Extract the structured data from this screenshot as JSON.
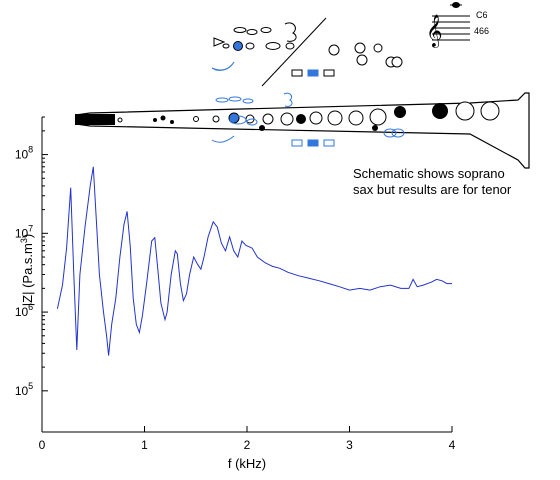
{
  "chart_data": {
    "type": "line",
    "xlabel": "f (kHz)",
    "ylabel": "|Z| (Pa.s.m",
    "ylabel_sup": "3",
    "ylabel_close": ")",
    "xlim": [
      0,
      4
    ],
    "ylim": [
      30000,
      300000000
    ],
    "yscale": "log",
    "xticks": [
      {
        "value": 0,
        "label": "0"
      },
      {
        "value": 1,
        "label": "1"
      },
      {
        "value": 2,
        "label": "2"
      },
      {
        "value": 3,
        "label": "3"
      },
      {
        "value": 4,
        "label": "4"
      }
    ],
    "yticks": [
      {
        "value": 100000,
        "base": "10",
        "exp": "5"
      },
      {
        "value": 1000000,
        "base": "10",
        "exp": "6"
      },
      {
        "value": 10000000,
        "base": "10",
        "exp": "7"
      },
      {
        "value": 100000000,
        "base": "10",
        "exp": "8"
      }
    ],
    "grid": false,
    "annotation": [
      "Schematic shows soprano",
      "sax but results are for tenor"
    ],
    "note_label": "C6",
    "note_freq": "466",
    "line_color": "#2233cc",
    "key_highlight_color": "#3377dd",
    "series": [
      {
        "points": [
          [
            0.15,
            1100000
          ],
          [
            0.2,
            2200000
          ],
          [
            0.24,
            6500000
          ],
          [
            0.28,
            38000000
          ],
          [
            0.31,
            3000000
          ],
          [
            0.34,
            330000
          ],
          [
            0.37,
            3000000
          ],
          [
            0.42,
            12000000
          ],
          [
            0.47,
            40000000
          ],
          [
            0.5,
            70000000
          ],
          [
            0.53,
            15000000
          ],
          [
            0.56,
            3000000
          ],
          [
            0.6,
            1000000
          ],
          [
            0.63,
            500000
          ],
          [
            0.65,
            280000
          ],
          [
            0.68,
            700000
          ],
          [
            0.72,
            1500000
          ],
          [
            0.76,
            5000000
          ],
          [
            0.8,
            13000000
          ],
          [
            0.83,
            19000000
          ],
          [
            0.86,
            7000000
          ],
          [
            0.89,
            1500000
          ],
          [
            0.92,
            700000
          ],
          [
            0.95,
            550000
          ],
          [
            0.98,
            900000
          ],
          [
            1.02,
            2300000
          ],
          [
            1.07,
            8000000
          ],
          [
            1.1,
            8800000
          ],
          [
            1.13,
            3500000
          ],
          [
            1.16,
            1300000
          ],
          [
            1.2,
            800000
          ],
          [
            1.22,
            1000000
          ],
          [
            1.26,
            3000000
          ],
          [
            1.3,
            6000000
          ],
          [
            1.32,
            5500000
          ],
          [
            1.35,
            2300000
          ],
          [
            1.38,
            1400000
          ],
          [
            1.41,
            1700000
          ],
          [
            1.44,
            3000000
          ],
          [
            1.48,
            5000000
          ],
          [
            1.52,
            4000000
          ],
          [
            1.55,
            3500000
          ],
          [
            1.58,
            5000000
          ],
          [
            1.62,
            9000000
          ],
          [
            1.67,
            14000000
          ],
          [
            1.71,
            12000000
          ],
          [
            1.75,
            7500000
          ],
          [
            1.79,
            6000000
          ],
          [
            1.83,
            9000000
          ],
          [
            1.87,
            6000000
          ],
          [
            1.91,
            5000000
          ],
          [
            1.95,
            8000000
          ],
          [
            1.99,
            7000000
          ],
          [
            2.05,
            6500000
          ],
          [
            2.1,
            5000000
          ],
          [
            2.18,
            4200000
          ],
          [
            2.25,
            3800000
          ],
          [
            2.32,
            3600000
          ],
          [
            2.4,
            3200000
          ],
          [
            2.5,
            2900000
          ],
          [
            2.6,
            2700000
          ],
          [
            2.7,
            2500000
          ],
          [
            2.8,
            2300000
          ],
          [
            2.9,
            2100000
          ],
          [
            3.0,
            1900000
          ],
          [
            3.1,
            2000000
          ],
          [
            3.2,
            1900000
          ],
          [
            3.3,
            2100000
          ],
          [
            3.4,
            2200000
          ],
          [
            3.5,
            2000000
          ],
          [
            3.58,
            2000000
          ],
          [
            3.62,
            2600000
          ],
          [
            3.66,
            2100000
          ],
          [
            3.72,
            2200000
          ],
          [
            3.8,
            2400000
          ],
          [
            3.85,
            2600000
          ],
          [
            3.9,
            2500000
          ],
          [
            3.95,
            2300000
          ],
          [
            4.0,
            2300000
          ]
        ]
      }
    ]
  }
}
